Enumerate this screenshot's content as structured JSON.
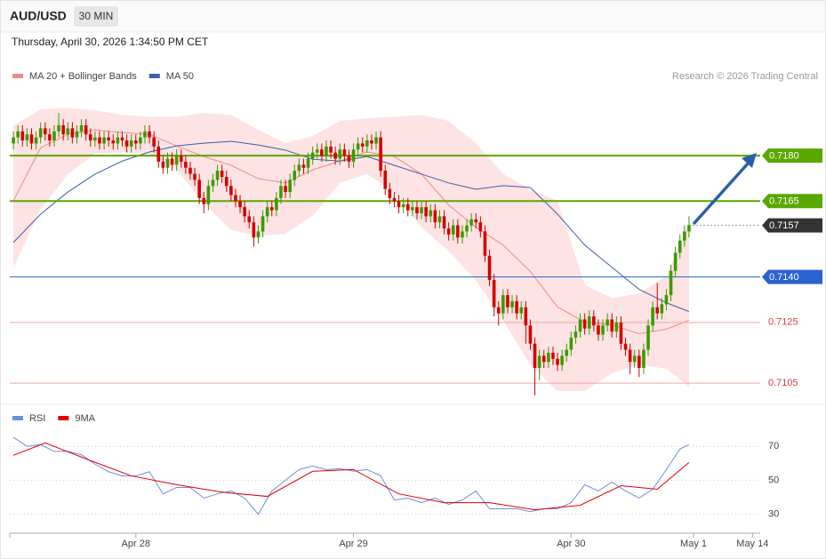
{
  "chart_data": [
    {
      "type": "candlestick",
      "title": "AUD/USD",
      "timeframe": "30 MIN",
      "subtitle": "Thursday, April 30, 2026 1:34:50 PM CET",
      "source": "Research © 2026 Trading Central",
      "up_color": "#3c9a00",
      "down_color": "#d40000",
      "xlim": [
        -0.8,
        164.7
      ],
      "ylim": [
        0.7098,
        0.7202
      ],
      "open": [
        0.7184,
        0.7186,
        0.7188,
        0.7185,
        0.7187,
        0.7184,
        0.7186,
        0.7189,
        0.7187,
        0.7185,
        0.7188,
        0.719,
        0.7187,
        0.7189,
        0.7186,
        0.7188,
        0.719,
        0.7187,
        0.7185,
        0.7186,
        0.7184,
        0.7186,
        0.7185,
        0.7184,
        0.7186,
        0.7185,
        0.7183,
        0.7185,
        0.7184,
        0.7186,
        0.7188,
        0.7186,
        0.7183,
        0.7178,
        0.7176,
        0.7179,
        0.7177,
        0.718,
        0.7178,
        0.7176,
        0.7174,
        0.7172,
        0.7166,
        0.7164,
        0.717,
        0.7172,
        0.7175,
        0.7173,
        0.717,
        0.7167,
        0.7165,
        0.7163,
        0.716,
        0.7158,
        0.7153,
        0.7155,
        0.716,
        0.7163,
        0.7162,
        0.7166,
        0.717,
        0.7168,
        0.7172,
        0.7175,
        0.7177,
        0.7176,
        0.7179,
        0.7181,
        0.7182,
        0.718,
        0.7183,
        0.7181,
        0.7179,
        0.7182,
        0.718,
        0.7178,
        0.7182,
        0.7184,
        0.7183,
        0.7185,
        0.7184,
        0.7186,
        0.7175,
        0.7169,
        0.7166,
        0.7165,
        0.7163,
        0.7164,
        0.7162,
        0.7163,
        0.7161,
        0.7163,
        0.716,
        0.7162,
        0.7158,
        0.716,
        0.7156,
        0.7154,
        0.7157,
        0.7153,
        0.7155,
        0.7157,
        0.7159,
        0.7158,
        0.7155,
        0.7147,
        0.7139,
        0.713,
        0.7128,
        0.7134,
        0.713,
        0.7132,
        0.7128,
        0.713,
        0.7124,
        0.7118,
        0.711,
        0.7114,
        0.7112,
        0.7115,
        0.7113,
        0.7111,
        0.7114,
        0.7116,
        0.712,
        0.7122,
        0.7126,
        0.7123,
        0.7127,
        0.7124,
        0.7121,
        0.7124,
        0.7126,
        0.7122,
        0.7125,
        0.7118,
        0.7116,
        0.7112,
        0.7114,
        0.711,
        0.7116,
        0.7124,
        0.713,
        0.7128,
        0.7131,
        0.7134,
        0.7142,
        0.7148,
        0.7152,
        0.7155
      ],
      "high": [
        0.7188,
        0.719,
        0.719,
        0.7189,
        0.7189,
        0.7188,
        0.7191,
        0.7191,
        0.7189,
        0.719,
        0.7194,
        0.7192,
        0.7191,
        0.7191,
        0.719,
        0.7192,
        0.7192,
        0.7189,
        0.7188,
        0.7188,
        0.7188,
        0.7188,
        0.7187,
        0.7188,
        0.7188,
        0.7187,
        0.7187,
        0.7187,
        0.7188,
        0.719,
        0.719,
        0.7188,
        0.7185,
        0.718,
        0.7181,
        0.7181,
        0.7182,
        0.7182,
        0.718,
        0.7178,
        0.7176,
        0.7174,
        0.7168,
        0.7172,
        0.7174,
        0.7177,
        0.7177,
        0.7175,
        0.7172,
        0.7169,
        0.7167,
        0.7165,
        0.7162,
        0.716,
        0.7157,
        0.7162,
        0.7165,
        0.7165,
        0.7168,
        0.7172,
        0.7172,
        0.7174,
        0.7177,
        0.7179,
        0.7179,
        0.7181,
        0.7183,
        0.7184,
        0.7184,
        0.7185,
        0.7185,
        0.7183,
        0.7184,
        0.7184,
        0.7182,
        0.7184,
        0.7186,
        0.7186,
        0.7187,
        0.7187,
        0.7188,
        0.7188,
        0.7177,
        0.7171,
        0.7168,
        0.7167,
        0.7166,
        0.7166,
        0.7165,
        0.7165,
        0.7165,
        0.7165,
        0.7164,
        0.7164,
        0.7162,
        0.7162,
        0.7158,
        0.7159,
        0.7159,
        0.7157,
        0.7159,
        0.7161,
        0.7161,
        0.716,
        0.7157,
        0.7149,
        0.7141,
        0.7132,
        0.7136,
        0.7136,
        0.7134,
        0.7134,
        0.7132,
        0.7132,
        0.7126,
        0.712,
        0.7116,
        0.7116,
        0.7117,
        0.7117,
        0.7115,
        0.7116,
        0.7118,
        0.7122,
        0.7124,
        0.7128,
        0.7128,
        0.7129,
        0.7129,
        0.7126,
        0.7126,
        0.7128,
        0.7128,
        0.7127,
        0.7127,
        0.712,
        0.7118,
        0.7116,
        0.7116,
        0.7118,
        0.7126,
        0.7132,
        0.7138,
        0.7133,
        0.7136,
        0.7144,
        0.715,
        0.7154,
        0.7157,
        0.716
      ],
      "low": [
        0.7182,
        0.7184,
        0.7183,
        0.7183,
        0.7182,
        0.7182,
        0.7184,
        0.7185,
        0.7183,
        0.7183,
        0.7186,
        0.7185,
        0.7185,
        0.7184,
        0.7184,
        0.7186,
        0.7185,
        0.7183,
        0.7183,
        0.7182,
        0.7182,
        0.7183,
        0.7182,
        0.7182,
        0.7183,
        0.7181,
        0.7181,
        0.7182,
        0.7182,
        0.7184,
        0.7184,
        0.7181,
        0.7176,
        0.7174,
        0.7174,
        0.7175,
        0.7175,
        0.7176,
        0.7174,
        0.7172,
        0.717,
        0.7164,
        0.7161,
        0.7162,
        0.7168,
        0.717,
        0.7171,
        0.7168,
        0.7165,
        0.7163,
        0.7161,
        0.7158,
        0.7156,
        0.715,
        0.7151,
        0.7153,
        0.7158,
        0.716,
        0.716,
        0.7164,
        0.7166,
        0.7166,
        0.717,
        0.7173,
        0.7174,
        0.7174,
        0.7177,
        0.7179,
        0.7178,
        0.7178,
        0.7179,
        0.7177,
        0.7177,
        0.7178,
        0.7176,
        0.7176,
        0.718,
        0.7181,
        0.7181,
        0.7182,
        0.7182,
        0.7173,
        0.7167,
        0.7164,
        0.7163,
        0.7161,
        0.7161,
        0.716,
        0.716,
        0.7159,
        0.7159,
        0.7158,
        0.7158,
        0.7156,
        0.7156,
        0.7154,
        0.7152,
        0.7152,
        0.7151,
        0.7151,
        0.7153,
        0.7155,
        0.7156,
        0.7153,
        0.7145,
        0.7137,
        0.7127,
        0.7124,
        0.7126,
        0.7128,
        0.7128,
        0.7126,
        0.7126,
        0.7118,
        0.7116,
        0.7101,
        0.7106,
        0.711,
        0.711,
        0.7111,
        0.7109,
        0.7109,
        0.7112,
        0.7114,
        0.7118,
        0.712,
        0.7121,
        0.7121,
        0.7122,
        0.7119,
        0.7119,
        0.7122,
        0.712,
        0.712,
        0.7116,
        0.7114,
        0.7108,
        0.711,
        0.7107,
        0.7108,
        0.7114,
        0.7122,
        0.7126,
        0.7126,
        0.7129,
        0.7132,
        0.714,
        0.7146,
        0.715,
        0.7153
      ],
      "close": [
        0.7186,
        0.7188,
        0.7185,
        0.7187,
        0.7184,
        0.7186,
        0.7189,
        0.7187,
        0.7185,
        0.7188,
        0.719,
        0.7187,
        0.7189,
        0.7186,
        0.7188,
        0.719,
        0.7187,
        0.7185,
        0.7186,
        0.7184,
        0.7186,
        0.7185,
        0.7184,
        0.7186,
        0.7185,
        0.7183,
        0.7185,
        0.7184,
        0.7186,
        0.7188,
        0.7186,
        0.7183,
        0.7178,
        0.7176,
        0.7179,
        0.7177,
        0.718,
        0.7178,
        0.7176,
        0.7174,
        0.7172,
        0.7166,
        0.7164,
        0.717,
        0.7172,
        0.7175,
        0.7173,
        0.717,
        0.7167,
        0.7165,
        0.7163,
        0.716,
        0.7158,
        0.7153,
        0.7155,
        0.716,
        0.7163,
        0.7162,
        0.7166,
        0.717,
        0.7168,
        0.7172,
        0.7175,
        0.7177,
        0.7176,
        0.7179,
        0.7181,
        0.7182,
        0.718,
        0.7183,
        0.7181,
        0.7179,
        0.7182,
        0.718,
        0.7178,
        0.7182,
        0.7184,
        0.7183,
        0.7185,
        0.7184,
        0.7186,
        0.7175,
        0.7169,
        0.7166,
        0.7165,
        0.7163,
        0.7164,
        0.7162,
        0.7163,
        0.7161,
        0.7163,
        0.716,
        0.7162,
        0.7158,
        0.716,
        0.7156,
        0.7154,
        0.7157,
        0.7153,
        0.7155,
        0.7157,
        0.7159,
        0.7158,
        0.7155,
        0.7147,
        0.7139,
        0.713,
        0.7128,
        0.7134,
        0.713,
        0.7132,
        0.7128,
        0.713,
        0.7124,
        0.7118,
        0.711,
        0.7114,
        0.7112,
        0.7115,
        0.7113,
        0.7111,
        0.7114,
        0.7116,
        0.712,
        0.7122,
        0.7126,
        0.7123,
        0.7127,
        0.7124,
        0.7121,
        0.7124,
        0.7126,
        0.7122,
        0.7125,
        0.7118,
        0.7116,
        0.7112,
        0.7114,
        0.711,
        0.7116,
        0.7124,
        0.713,
        0.7128,
        0.7131,
        0.7134,
        0.7142,
        0.7148,
        0.7152,
        0.7155,
        0.7157
      ],
      "series": [
        {
          "name": "MA 20 + Bollinger Bands",
          "color": "#f08a8a",
          "band_color": "#fde3e3",
          "x": [
            0,
            6,
            12,
            18,
            24,
            30,
            36,
            42,
            48,
            54,
            60,
            66,
            72,
            78,
            84,
            90,
            96,
            102,
            108,
            114,
            120,
            126,
            132,
            138,
            144,
            149
          ],
          "values": [
            0.71651,
            0.71826,
            0.7187,
            0.71885,
            0.71876,
            0.7187,
            0.71832,
            0.71797,
            0.71768,
            0.71724,
            0.7171,
            0.71753,
            0.71782,
            0.71812,
            0.71797,
            0.71739,
            0.71637,
            0.71564,
            0.71505,
            0.71418,
            0.71301,
            0.71251,
            0.71242,
            0.71213,
            0.71228,
            0.71257
          ],
          "upper": [
            0.71899,
            0.71952,
            0.71958,
            0.71949,
            0.71934,
            0.71928,
            0.71928,
            0.7194,
            0.71934,
            0.71885,
            0.71841,
            0.71864,
            0.71914,
            0.71923,
            0.71928,
            0.71934,
            0.71914,
            0.71841,
            0.71739,
            0.71689,
            0.71651,
            0.71374,
            0.7133,
            0.71345,
            0.71403,
            0.71578
          ],
          "lower": [
            0.71432,
            0.71622,
            0.71739,
            0.71806,
            0.71812,
            0.71806,
            0.71753,
            0.71642,
            0.71555,
            0.71534,
            0.71543,
            0.71602,
            0.7171,
            0.71739,
            0.7168,
            0.71564,
            0.71485,
            0.71389,
            0.71257,
            0.71111,
            0.71024,
            0.71024,
            0.71082,
            0.71111,
            0.71097,
            0.71038
          ]
        },
        {
          "name": "MA 50",
          "color": "#3b5ea8",
          "x": [
            0,
            6,
            12,
            18,
            24,
            30,
            36,
            42,
            48,
            54,
            60,
            66,
            72,
            78,
            84,
            90,
            96,
            102,
            108,
            114,
            120,
            126,
            132,
            138,
            144,
            149
          ],
          "values": [
            0.71514,
            0.71607,
            0.7168,
            0.71739,
            0.71782,
            0.71812,
            0.71832,
            0.71841,
            0.71847,
            0.71835,
            0.71818,
            0.71788,
            0.71782,
            0.71797,
            0.71768,
            0.71739,
            0.7171,
            0.71689,
            0.71701,
            0.71695,
            0.71607,
            0.71505,
            0.71432,
            0.71359,
            0.71315,
            0.71286
          ]
        }
      ],
      "levels": [
        {
          "value": 0.718,
          "label": "0.7180",
          "color": "#5aa700",
          "style": "badge",
          "line_width": 2
        },
        {
          "value": 0.7165,
          "color": "#5aa700",
          "style": "badge",
          "line_width": 2
        },
        {
          "value": 0.7157,
          "color": "#333333",
          "style": "current",
          "line_width": 1
        },
        {
          "value": 0.714,
          "label": "0.7140",
          "color": "#2a62d0",
          "style": "badge",
          "line_width": 1
        },
        {
          "value": 0.7125,
          "color": "#e23b3b",
          "style": "text",
          "line_width": 1
        },
        {
          "value": 0.7105,
          "color": "#e23b3b",
          "style": "text",
          "line_width": 1
        }
      ]
    },
    {
      "type": "line",
      "xlim": [
        -0.8,
        164.7
      ],
      "xticks": [
        {
          "value": 27,
          "label": "Apr 28"
        },
        {
          "value": 75,
          "label": "Apr 29"
        },
        {
          "value": 123,
          "label": "Apr 30"
        },
        {
          "value": 150,
          "label": "May 1"
        },
        {
          "value": 163,
          "label": "May 14"
        }
      ],
      "ylim": [
        23,
        79
      ],
      "yticks": [
        30,
        50,
        70
      ],
      "grid": true,
      "series": [
        {
          "name": "RSI",
          "color": "#6d8fdc",
          "x": [
            0,
            3,
            6,
            9,
            12,
            15,
            18,
            21,
            24,
            27,
            30,
            33,
            36,
            39,
            42,
            45,
            48,
            51,
            54,
            57,
            60,
            63,
            66,
            69,
            72,
            75,
            78,
            81,
            84,
            87,
            90,
            93,
            96,
            99,
            102,
            105,
            108,
            111,
            114,
            117,
            120,
            123,
            126,
            129,
            132,
            135,
            138,
            141,
            144,
            147,
            149
          ],
          "values": [
            75.3,
            70,
            71,
            67,
            67,
            65,
            59.5,
            55,
            52.6,
            52.6,
            55,
            42,
            45.8,
            45.8,
            39.5,
            42,
            43.7,
            39.5,
            30,
            43.7,
            50,
            56.3,
            58.4,
            56.3,
            56.8,
            55.3,
            56.3,
            52.6,
            38.4,
            39.5,
            36.8,
            39.5,
            35.8,
            38.4,
            43.7,
            33.2,
            33.2,
            33.2,
            31.6,
            33.2,
            33.2,
            36.8,
            47.4,
            43.7,
            48.9,
            43.7,
            39.5,
            44.7,
            56.3,
            68.4,
            71
          ]
        },
        {
          "name": "9MA",
          "color": "#e00000",
          "x": [
            0,
            7,
            17,
            26,
            36,
            46,
            56,
            66,
            75,
            85,
            95,
            105,
            115,
            125,
            134,
            142,
            149
          ],
          "values": [
            64.7,
            72,
            61.6,
            52.6,
            47.4,
            43,
            40.5,
            55.3,
            56.3,
            42,
            36.8,
            36.8,
            32.6,
            35.3,
            46.8,
            44.7,
            60.5
          ]
        }
      ]
    }
  ]
}
